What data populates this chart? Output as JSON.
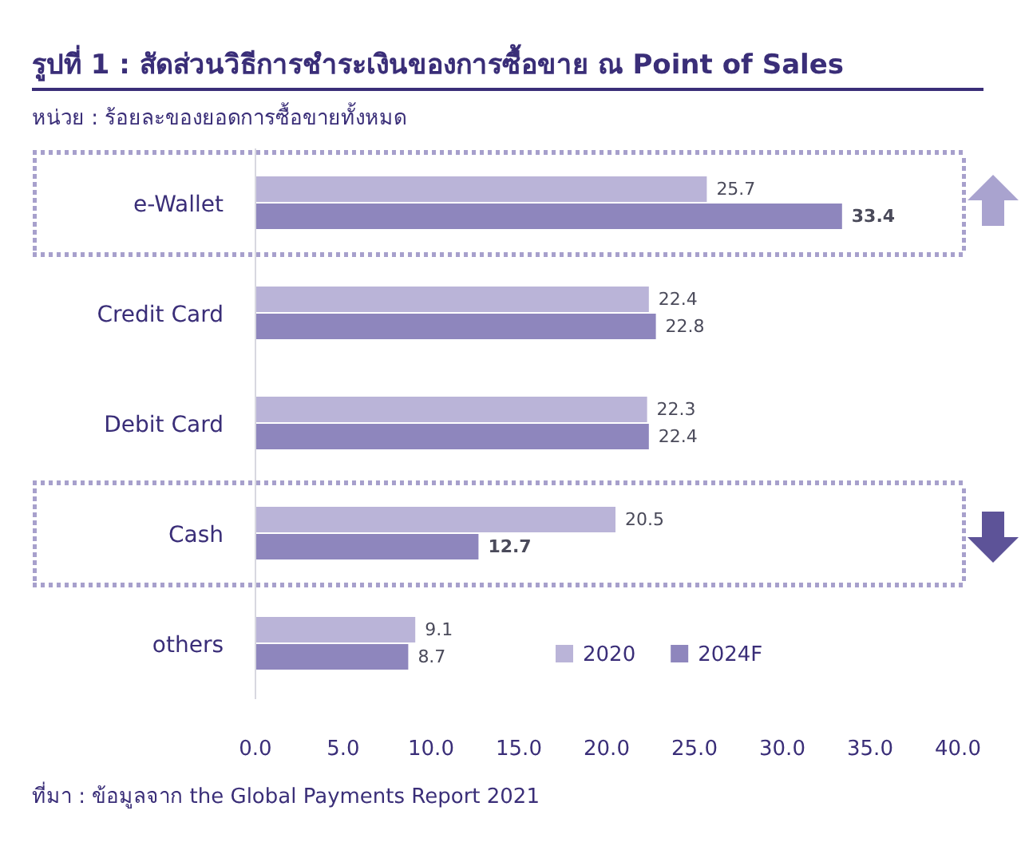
{
  "chart_data": {
    "type": "bar",
    "orientation": "horizontal",
    "title": "รูปที่ 1 : สัดส่วนวิธีการชำระเงินของการซื้อขาย ณ Point of Sales",
    "subtitle": "หน่วย : ร้อยละของยอดการซื้อขายทั้งหมด",
    "categories": [
      "e-Wallet",
      "Credit Card",
      "Debit Card",
      "Cash",
      "others"
    ],
    "series": [
      {
        "name": "2020",
        "color": "#bab4d8",
        "values": [
          25.7,
          22.4,
          22.3,
          20.5,
          9.1
        ]
      },
      {
        "name": "2024F",
        "color": "#8e86bd",
        "values": [
          33.4,
          22.8,
          22.4,
          12.7,
          8.7
        ]
      }
    ],
    "xlim": [
      0,
      40
    ],
    "xticks": [
      {
        "value": 0,
        "label": "0.0"
      },
      {
        "value": 5,
        "label": "5.0"
      },
      {
        "value": 10,
        "label": "10.0"
      },
      {
        "value": 15,
        "label": "15.0"
      },
      {
        "value": 20,
        "label": "20.0"
      },
      {
        "value": 25,
        "label": "25.0"
      },
      {
        "value": 30,
        "label": "30.0"
      },
      {
        "value": 35,
        "label": "35.0"
      },
      {
        "value": 40,
        "label": "40.0"
      }
    ],
    "data_labels": true,
    "legend": "bottom right",
    "grid": false,
    "annotations": [
      "ที่มา : ข้อมูลจาก the Global Payments Report 2021"
    ]
  }
}
